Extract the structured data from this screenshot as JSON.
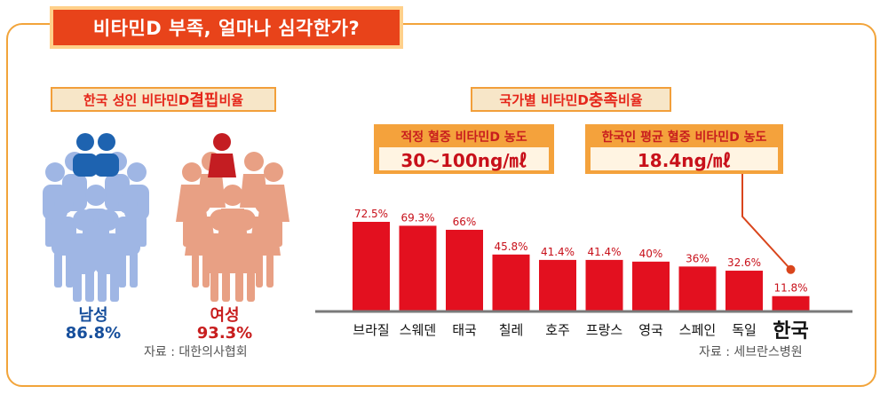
{
  "main_title": "비타민D 부족, 얼마나 심각한가?",
  "left_section": {
    "label_pre": "한국 성인 비타민D ",
    "label_em": "결핍",
    "label_post": " 비율",
    "men_label": "남성",
    "men_value": "86.8%",
    "women_label": "여성",
    "women_value": "93.3%",
    "source": "자료 : 대한의사협회"
  },
  "right_section": {
    "label_pre": "국가별 비타민D ",
    "label_em": "충족",
    "label_post": " 비율",
    "box_normal_label": "적정 혈중 비타민D 농도",
    "box_normal_value": "30~100ng/㎖",
    "box_korea_label_em": "한국인 평균",
    "box_korea_label_post": " 혈중 비타민D 농도",
    "box_korea_value": "18.4ng/㎖",
    "source": "자료 : 세브란스병원"
  },
  "colors": {
    "bar": "#e3101f",
    "male": "#9fb6e4",
    "male_accent": "#1e63b0",
    "female": "#e8a084",
    "female_accent": "#c41d22",
    "axis": "#7a7a7a",
    "pointer": "#d9451c"
  },
  "chart_data": {
    "type": "bar",
    "categories": [
      "브라질",
      "스웨덴",
      "태국",
      "칠레",
      "호주",
      "프랑스",
      "영국",
      "스페인",
      "독일",
      "한국"
    ],
    "values": [
      72.5,
      69.3,
      66,
      45.8,
      41.4,
      41.4,
      40,
      36,
      32.6,
      11.8
    ],
    "value_labels": [
      "72.5%",
      "69.3%",
      "66%",
      "45.8%",
      "41.4%",
      "41.4%",
      "40%",
      "36%",
      "32.6%",
      "11.8%"
    ],
    "highlight": "한국",
    "title": "국가별 비타민D 충족 비율",
    "ylim": [
      0,
      100
    ],
    "grid": false,
    "unit": "%"
  }
}
